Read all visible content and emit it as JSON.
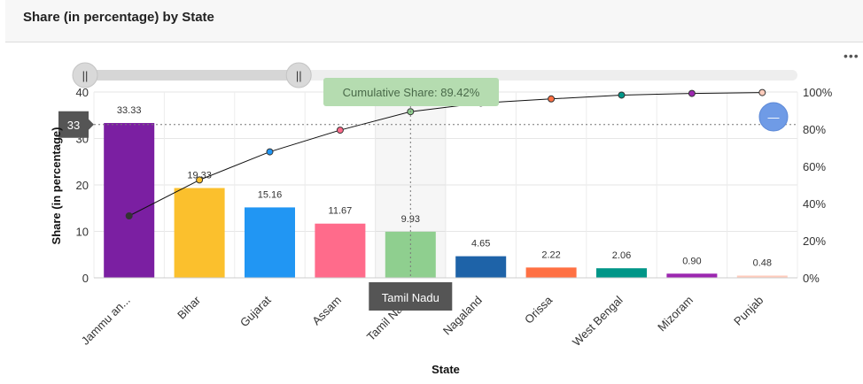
{
  "header": {
    "title": "Share (in percentage) by State"
  },
  "menu": {
    "icon": "more-dots-icon",
    "label": "•••"
  },
  "chart_data": {
    "type": "bar",
    "title": "Share (in percentage) by State",
    "xlabel": "State",
    "ylabel": "Share (in percentage)",
    "categories": [
      "Jammu an...",
      "Bihar",
      "Gujarat",
      "Assam",
      "Tamil Nadu",
      "Nagaland",
      "Orissa",
      "West Bengal",
      "Mizoram",
      "Punjab"
    ],
    "values": [
      33.33,
      19.33,
      15.16,
      11.67,
      9.93,
      4.65,
      2.22,
      2.06,
      0.9,
      0.48
    ],
    "value_labels": [
      "33.33",
      "19.33",
      "15.16",
      "11.67",
      "9.93",
      "4.65",
      "2.22",
      "2.06",
      "0.90",
      "0.48"
    ],
    "colors": [
      "#7b1fa2",
      "#fbc02d",
      "#2196f3",
      "#ff6b8b",
      "#8fcf8f",
      "#1e63a8",
      "#ff7043",
      "#009688",
      "#9c27b0",
      "#ffccbc"
    ],
    "ylim": [
      0,
      40
    ],
    "yticks": [
      0,
      10,
      20,
      30,
      40
    ],
    "y2lim": [
      0,
      100
    ],
    "y2ticks": [
      "0%",
      "20%",
      "40%",
      "60%",
      "80%",
      "100%"
    ],
    "cumulative": [
      33.33,
      52.66,
      67.82,
      79.49,
      89.42,
      94.07,
      96.29,
      98.35,
      99.25,
      99.73
    ],
    "cumulative_colors": [
      "#333333",
      "#fbc02d",
      "#2196f3",
      "#ff6b8b",
      "#8fcf8f",
      "#4a9a7a",
      "#ff7043",
      "#009688",
      "#9c27b0",
      "#ffccbc"
    ],
    "grid": true,
    "hover": {
      "category_index": 4,
      "category_label": "Tamil Nadu",
      "cumulative_label": "Cumulative Share: 89.42%",
      "y_crosshair_value": 33,
      "y_crosshair_label": "33"
    }
  },
  "slider": {
    "start": 0.0,
    "end": 0.3,
    "handle_icon": "grip-lines-icon",
    "handle_glyph": "||"
  },
  "zoom_button": {
    "icon": "zoom-out-minus-icon",
    "glyph": "—"
  }
}
